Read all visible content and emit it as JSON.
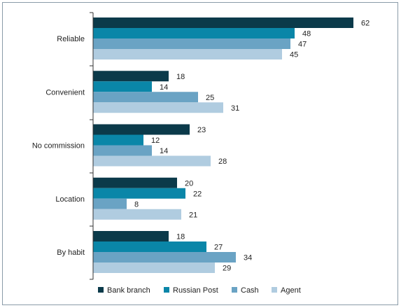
{
  "chart_data": {
    "type": "bar",
    "orientation": "horizontal",
    "categories": [
      "Reliable",
      "Convenient",
      "No commission",
      "Location",
      "By habit"
    ],
    "series": [
      {
        "name": "Bank branch",
        "color": "#0b3a4a",
        "values": [
          62,
          18,
          23,
          20,
          18
        ]
      },
      {
        "name": "Russian Post",
        "color": "#0a86a8",
        "values": [
          48,
          14,
          12,
          22,
          27
        ]
      },
      {
        "name": "Cash",
        "color": "#6aa3c4",
        "values": [
          47,
          25,
          14,
          8,
          34
        ]
      },
      {
        "name": "Agent",
        "color": "#b0cce0",
        "values": [
          45,
          31,
          28,
          21,
          29
        ]
      }
    ],
    "xlim": [
      0,
      70
    ],
    "grid": false,
    "legend_position": "bottom",
    "data_labels": true
  }
}
